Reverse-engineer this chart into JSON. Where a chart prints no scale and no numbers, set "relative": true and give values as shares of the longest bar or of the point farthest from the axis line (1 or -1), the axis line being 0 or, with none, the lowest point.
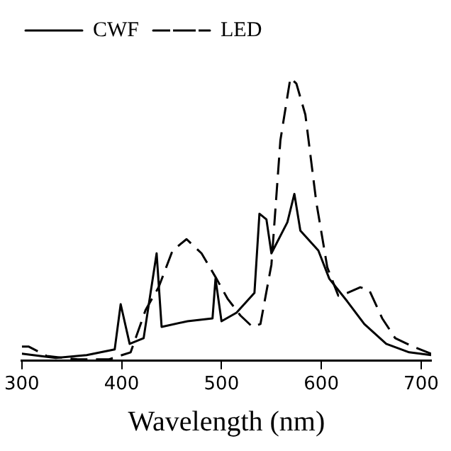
{
  "chart_data": {
    "type": "line",
    "relative": true,
    "xlabel": "Wavelength (nm)",
    "xlim": [
      300,
      710
    ],
    "xticks": [
      300,
      400,
      500,
      600,
      700
    ],
    "legend": "top left",
    "marker": "none",
    "grid": false,
    "series": [
      {
        "name": "CWF",
        "color": "#000000",
        "line_style": "solid",
        "x": [
          300,
          334,
          365,
          393,
          399,
          408,
          422,
          435,
          440,
          466,
          491,
          494,
          500,
          515,
          533,
          538,
          545,
          550,
          566,
          573,
          579,
          597,
          608,
          626,
          643,
          665,
          688,
          710
        ],
        "values": [
          0.025,
          0.01,
          0.02,
          0.04,
          0.2,
          0.06,
          0.08,
          0.38,
          0.12,
          0.14,
          0.15,
          0.29,
          0.14,
          0.17,
          0.24,
          0.52,
          0.5,
          0.38,
          0.49,
          0.59,
          0.46,
          0.39,
          0.29,
          0.21,
          0.13,
          0.06,
          0.03,
          0.02
        ]
      },
      {
        "name": "LED",
        "color": "#000000",
        "line_style": "dashed",
        "x": [
          300,
          307,
          325,
          356,
          387,
          409,
          424,
          437,
          451,
          465,
          480,
          495,
          506,
          519,
          531,
          539,
          550,
          559,
          569,
          575,
          584,
          595,
          606,
          617,
          626,
          639,
          648,
          661,
          674,
          692,
          710
        ],
        "values": [
          0.05,
          0.05,
          0.017,
          0.005,
          0.005,
          0.03,
          0.18,
          0.26,
          0.39,
          0.43,
          0.38,
          0.29,
          0.22,
          0.16,
          0.12,
          0.13,
          0.34,
          0.78,
          1,
          0.98,
          0.87,
          0.56,
          0.33,
          0.23,
          0.24,
          0.26,
          0.25,
          0.15,
          0.08,
          0.05,
          0.025
        ]
      }
    ]
  }
}
